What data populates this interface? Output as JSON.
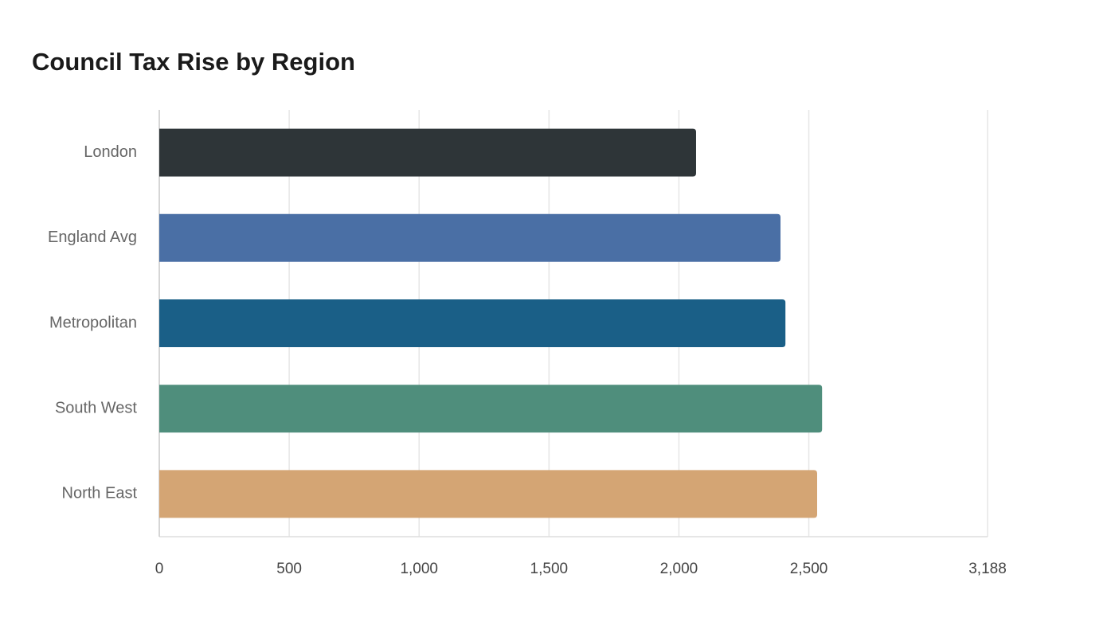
{
  "chart_data": {
    "type": "hbar",
    "title": "Council Tax Rise by Region",
    "categories": [
      "London",
      "England Avg",
      "Metropolitan",
      "South West",
      "North East"
    ],
    "values": [
      2066,
      2391,
      2410,
      2551,
      2532
    ],
    "colors": [
      "#2e3538",
      "#4a6fa5",
      "#1a5f87",
      "#4f8e7c",
      "#d4a574"
    ],
    "xlim": [
      0,
      3188
    ],
    "xticks": [
      0,
      500,
      {
        "value": 1000,
        "label": "1,000"
      },
      {
        "value": 1500,
        "label": "1,500"
      },
      {
        "value": 2000,
        "label": "2,000"
      },
      {
        "value": 2500,
        "label": "2,500"
      },
      {
        "value": 3188,
        "label": "3,188"
      }
    ],
    "grid": true
  }
}
